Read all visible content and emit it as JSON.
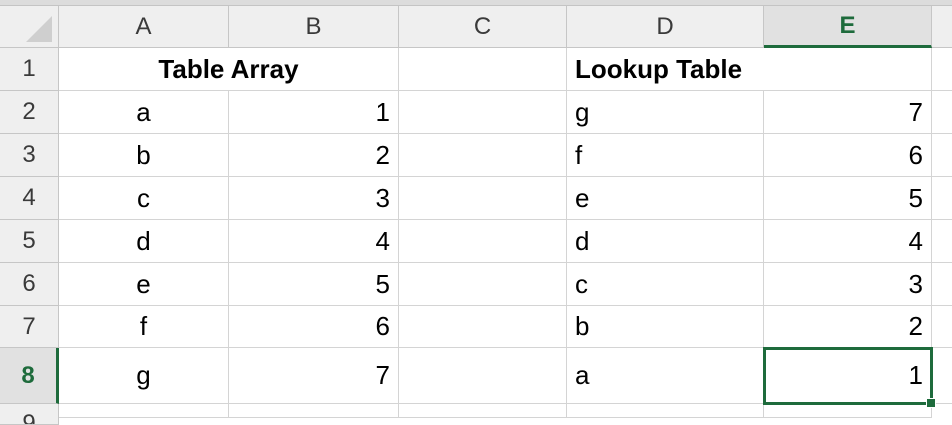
{
  "columns": [
    {
      "label": "A",
      "active": false
    },
    {
      "label": "B",
      "active": false
    },
    {
      "label": "C",
      "active": false
    },
    {
      "label": "D",
      "active": false
    },
    {
      "label": "E",
      "active": true
    }
  ],
  "rows": [
    {
      "num": "1",
      "a": "",
      "b": "",
      "c": "",
      "d": "Lookup Table",
      "e": ""
    },
    {
      "num": "2",
      "a": "a",
      "b": "1",
      "c": "",
      "d": "g",
      "e": "7"
    },
    {
      "num": "3",
      "a": "b",
      "b": "2",
      "c": "",
      "d": "f",
      "e": "6"
    },
    {
      "num": "4",
      "a": "c",
      "b": "3",
      "c": "",
      "d": "e",
      "e": "5"
    },
    {
      "num": "5",
      "a": "d",
      "b": "4",
      "c": "",
      "d": "d",
      "e": "4"
    },
    {
      "num": "6",
      "a": "e",
      "b": "5",
      "c": "",
      "d": "c",
      "e": "3"
    },
    {
      "num": "7",
      "a": "f",
      "b": "6",
      "c": "",
      "d": "b",
      "e": "2"
    },
    {
      "num": "8",
      "a": "g",
      "b": "7",
      "c": "",
      "d": "a",
      "e": "1"
    },
    {
      "num": "9"
    }
  ],
  "merged": {
    "a1_b1": "Table Array"
  },
  "selection": {
    "cell": "E8",
    "accent": "#1e6b3c"
  }
}
